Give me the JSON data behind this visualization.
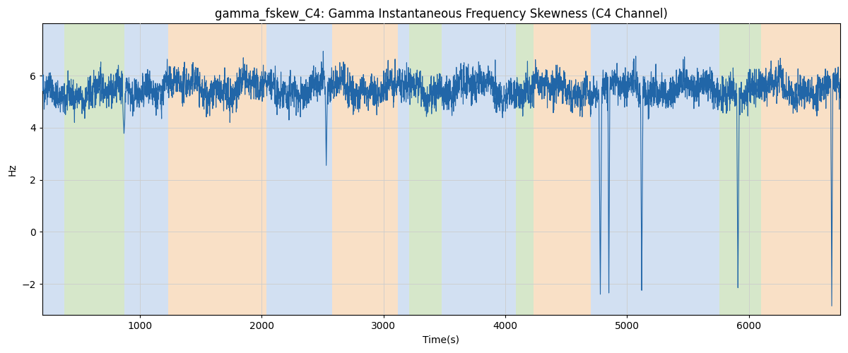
{
  "title": "gamma_fskew_C4: Gamma Instantaneous Frequency Skewness (C4 Channel)",
  "xlabel": "Time(s)",
  "ylabel": "Hz",
  "xlim": [
    200,
    6750
  ],
  "ylim": [
    -3.2,
    8.0
  ],
  "yticks": [
    -2,
    0,
    2,
    4,
    6
  ],
  "xticks": [
    1000,
    2000,
    3000,
    4000,
    5000,
    6000
  ],
  "line_color": "#2166a8",
  "line_width": 0.8,
  "bg_bands": [
    {
      "xmin": 200,
      "xmax": 380,
      "color": "#adc8e8",
      "alpha": 0.55
    },
    {
      "xmin": 380,
      "xmax": 870,
      "color": "#b5d5a0",
      "alpha": 0.55
    },
    {
      "xmin": 870,
      "xmax": 1230,
      "color": "#adc8e8",
      "alpha": 0.55
    },
    {
      "xmin": 1230,
      "xmax": 2040,
      "color": "#f5c898",
      "alpha": 0.55
    },
    {
      "xmin": 2040,
      "xmax": 2580,
      "color": "#adc8e8",
      "alpha": 0.55
    },
    {
      "xmin": 2580,
      "xmax": 3120,
      "color": "#f5c898",
      "alpha": 0.55
    },
    {
      "xmin": 3120,
      "xmax": 3210,
      "color": "#adc8e8",
      "alpha": 0.55
    },
    {
      "xmin": 3210,
      "xmax": 3480,
      "color": "#b5d5a0",
      "alpha": 0.55
    },
    {
      "xmin": 3480,
      "xmax": 4090,
      "color": "#adc8e8",
      "alpha": 0.55
    },
    {
      "xmin": 4090,
      "xmax": 4230,
      "color": "#b5d5a0",
      "alpha": 0.55
    },
    {
      "xmin": 4230,
      "xmax": 4700,
      "color": "#f5c898",
      "alpha": 0.55
    },
    {
      "xmin": 4700,
      "xmax": 5760,
      "color": "#adc8e8",
      "alpha": 0.55
    },
    {
      "xmin": 5760,
      "xmax": 6100,
      "color": "#b5d5a0",
      "alpha": 0.55
    },
    {
      "xmin": 6100,
      "xmax": 6750,
      "color": "#f5c898",
      "alpha": 0.55
    }
  ],
  "seed": 42,
  "background_color": "#ffffff",
  "grid_color": "#cccccc",
  "title_fontsize": 12
}
